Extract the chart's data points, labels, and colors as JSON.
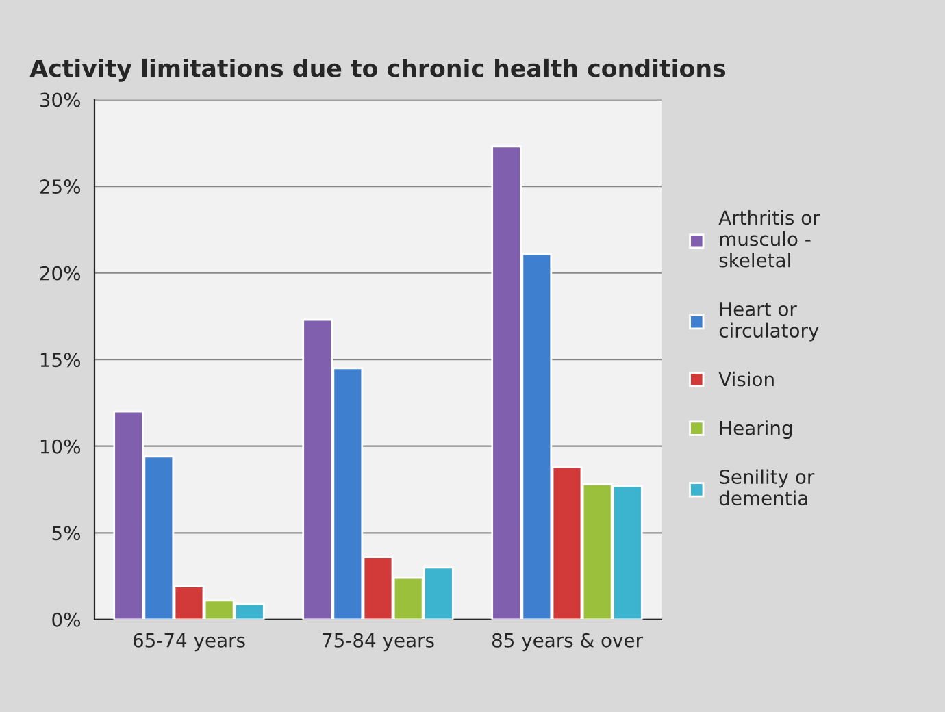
{
  "chart_data": {
    "type": "bar",
    "title": "Activity limitations due to chronic health conditions",
    "categories": [
      "65-74 years",
      "75-84 years",
      "85 years & over"
    ],
    "series": [
      {
        "name": "Arthritis or\nmusculo -\nskeletal",
        "color": "#7f5fae",
        "values": [
          12.0,
          17.3,
          27.3
        ]
      },
      {
        "name": "Heart or\ncirculatory",
        "color": "#3f7fcf",
        "values": [
          9.4,
          14.5,
          21.1
        ]
      },
      {
        "name": "Vision",
        "color": "#d23a3a",
        "values": [
          1.9,
          3.6,
          8.8
        ]
      },
      {
        "name": "Hearing",
        "color": "#9bc13c",
        "values": [
          1.1,
          2.4,
          7.8
        ]
      },
      {
        "name": "Senility or\ndementia",
        "color": "#3cb4cf",
        "values": [
          0.9,
          3.0,
          7.7
        ]
      }
    ],
    "ylim": [
      0,
      30
    ],
    "yticks": [
      {
        "value": 0,
        "label": "0%"
      },
      {
        "value": 5,
        "label": "5%"
      },
      {
        "value": 10,
        "label": "10%"
      },
      {
        "value": 15,
        "label": "15%"
      },
      {
        "value": 20,
        "label": "20%"
      },
      {
        "value": 25,
        "label": "25%"
      },
      {
        "value": 30,
        "label": "30%"
      }
    ],
    "grid": "y",
    "legend": "right"
  }
}
